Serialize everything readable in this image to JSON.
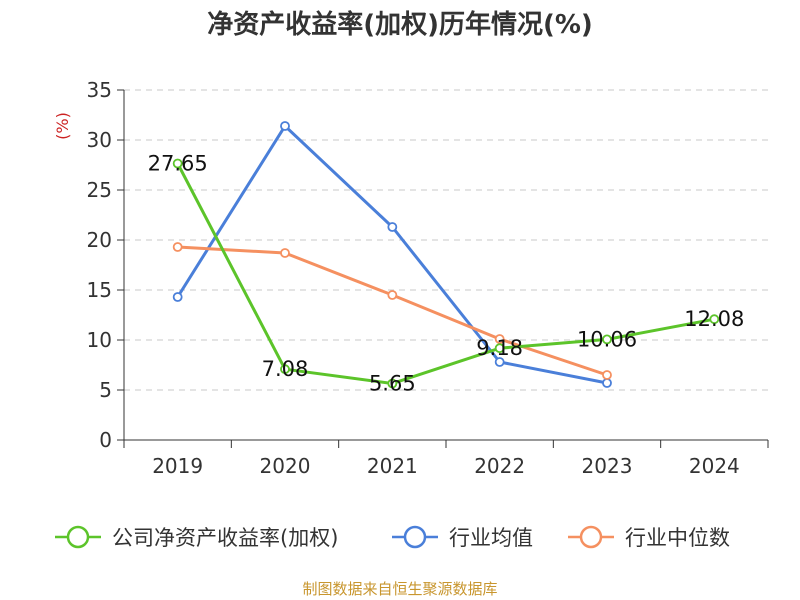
{
  "chart_data": {
    "type": "line",
    "title": "净资产收益率(加权)历年情况(%)",
    "ylabel": "(%)",
    "xlabel": "",
    "categories": [
      "2019",
      "2020",
      "2021",
      "2022",
      "2023",
      "2024"
    ],
    "ylim": [
      0,
      35
    ],
    "yticks": [
      0,
      5,
      10,
      15,
      20,
      25,
      30,
      35
    ],
    "grid": "horizontal-dashed",
    "legend_position": "bottom",
    "series": [
      {
        "name": "公司净资产收益率(加权)",
        "color": "#5cc42a",
        "values": [
          27.65,
          7.08,
          5.65,
          9.18,
          10.06,
          12.08
        ],
        "labels": [
          "27.65",
          "7.08",
          "5.65",
          "9.18",
          "10.06",
          "12.08"
        ]
      },
      {
        "name": "行业均值",
        "color": "#4a7fd9",
        "values": [
          14.3,
          31.4,
          21.3,
          7.8,
          5.7,
          null
        ]
      },
      {
        "name": "行业中位数",
        "color": "#f59060",
        "values": [
          19.3,
          18.7,
          14.5,
          10.1,
          6.5,
          null
        ]
      }
    ]
  },
  "source": {
    "text": "制图数据来自恒生聚源数据库",
    "color": "#c8962e"
  },
  "colors": {
    "unit_label": "#cc2222",
    "axis": "#333333",
    "grid": "#c8c8c8"
  }
}
